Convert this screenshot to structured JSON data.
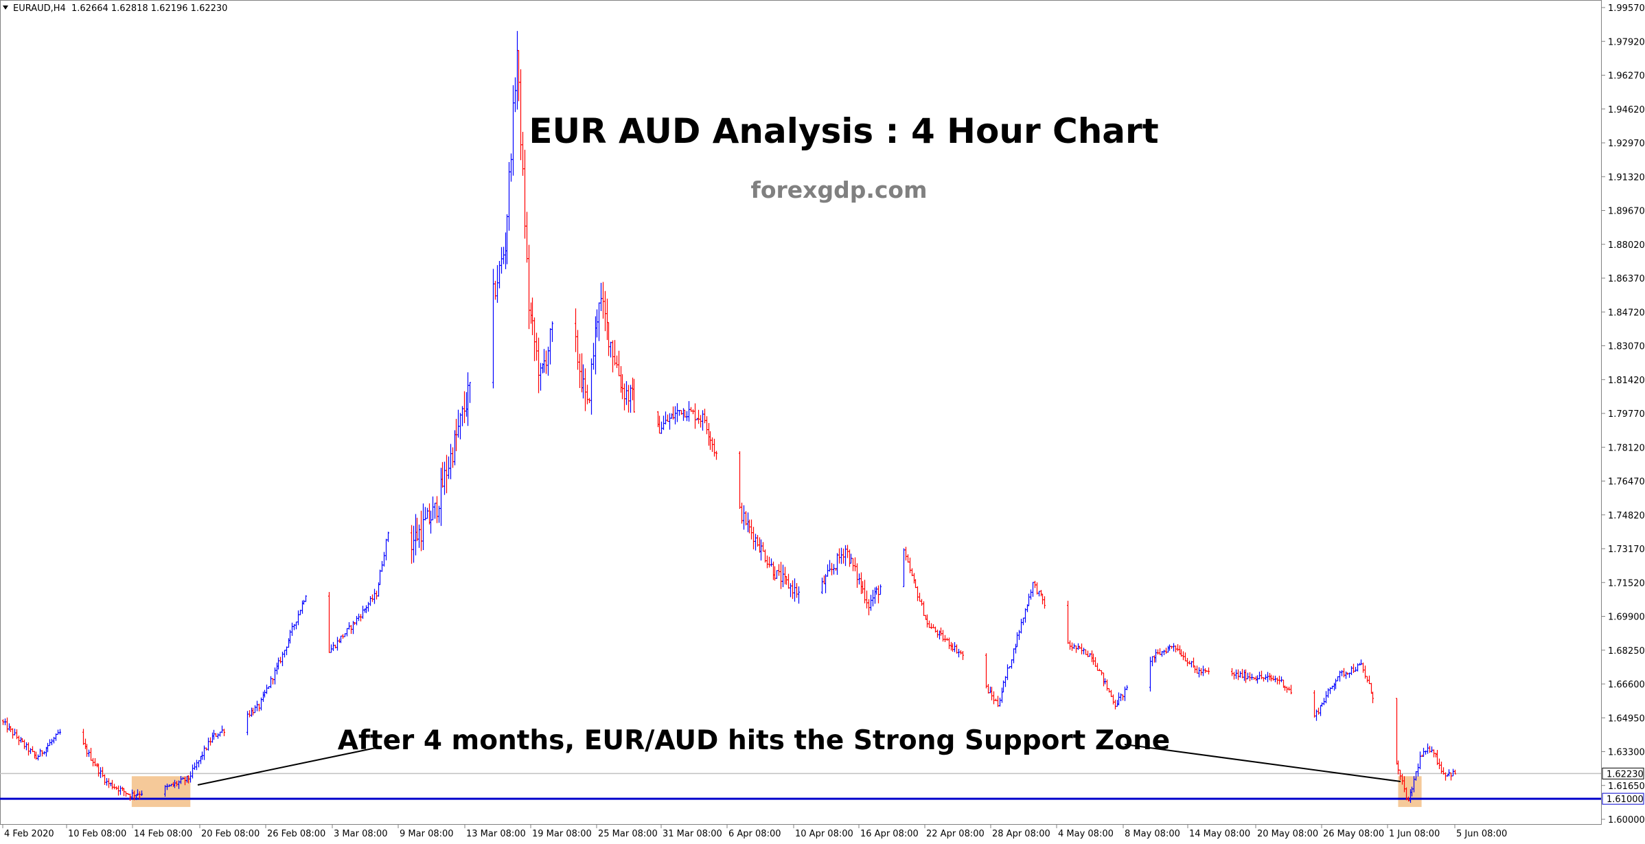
{
  "header": {
    "symbol": "EURAUD,H4",
    "ohlc": "1.62664 1.62818 1.62196 1.62230"
  },
  "title": "EUR AUD Analysis : 4 Hour Chart",
  "watermark": "forexgdp.com",
  "annotation": "After 4 months, EUR/AUD hits the Strong Support Zone",
  "colors": {
    "bull": "#0000ff",
    "bear": "#ff0000",
    "support_line": "#0000cc",
    "current_line": "#c0c0c0",
    "zone": "#f5c999",
    "frame": "#808080"
  },
  "chart_data": {
    "type": "candlestick",
    "symbol": "EURAUD",
    "timeframe": "H4",
    "y_ticks": [
      "1.99570",
      "1.97920",
      "1.96270",
      "1.94620",
      "1.92970",
      "1.91320",
      "1.89670",
      "1.88020",
      "1.86370",
      "1.84720",
      "1.83070",
      "1.81420",
      "1.79770",
      "1.78120",
      "1.76470",
      "1.74820",
      "1.73170",
      "1.71520",
      "1.69900",
      "1.68250",
      "1.66600",
      "1.64950",
      "1.63300",
      "1.61650",
      "1.60000"
    ],
    "ylim": [
      1.6,
      1.9957
    ],
    "x_labels": [
      "4 Feb 2020",
      "10 Feb 08:00",
      "14 Feb 08:00",
      "20 Feb 08:00",
      "26 Feb 08:00",
      "3 Mar 08:00",
      "9 Mar 08:00",
      "13 Mar 08:00",
      "19 Mar 08:00",
      "25 Mar 08:00",
      "31 Mar 08:00",
      "6 Apr 08:00",
      "10 Apr 08:00",
      "16 Apr 08:00",
      "22 Apr 08:00",
      "28 Apr 08:00",
      "4 May 08:00",
      "8 May 08:00",
      "14 May 08:00",
      "20 May 08:00",
      "26 May 08:00",
      "1 Jun 08:00",
      "5 Jun 08:00"
    ],
    "current_price": "1.62230",
    "support_level": "1.61000",
    "support_zones": [
      {
        "date_from": "14 Feb 2020",
        "date_to": "19 Feb 2020",
        "low": 1.606,
        "high": 1.621
      },
      {
        "date_from": "1 Jun 2020",
        "date_to": "3 Jun 2020",
        "low": 1.606,
        "high": 1.621
      }
    ],
    "price_path": [
      {
        "date": "3 Feb 2020",
        "close": 1.648
      },
      {
        "date": "6 Feb 2020",
        "close": 1.63
      },
      {
        "date": "8 Feb 2020",
        "close": 1.642
      },
      {
        "date": "10 Feb 2020",
        "close": 1.636
      },
      {
        "date": "12 Feb 2020",
        "close": 1.618
      },
      {
        "date": "14 Feb 2020",
        "close": 1.612
      },
      {
        "date": "17 Feb 2020",
        "close": 1.615
      },
      {
        "date": "19 Feb 2020",
        "close": 1.62
      },
      {
        "date": "21 Feb 2020",
        "close": 1.64
      },
      {
        "date": "25 Feb 2020",
        "close": 1.655
      },
      {
        "date": "27 Feb 2020",
        "close": 1.68
      },
      {
        "date": "29 Feb 2020",
        "close": 1.71
      },
      {
        "date": "2 Mar 2020",
        "close": 1.682
      },
      {
        "date": "4 Mar 2020",
        "close": 1.695
      },
      {
        "date": "6 Mar 2020",
        "close": 1.71
      },
      {
        "date": "8 Mar 2020",
        "close": 1.77
      },
      {
        "date": "9 Mar 2020",
        "close": 1.735
      },
      {
        "date": "11 Mar 2020",
        "close": 1.75
      },
      {
        "date": "13 Mar 2020",
        "close": 1.79
      },
      {
        "date": "15 Mar 2020",
        "close": 1.83
      },
      {
        "date": "17 Mar 2020",
        "close": 1.88
      },
      {
        "date": "18 Mar 2020",
        "close": 1.975
      },
      {
        "date": "19 Mar 2020",
        "close": 1.85
      },
      {
        "date": "20 Mar 2020",
        "close": 1.815
      },
      {
        "date": "22 Mar 2020",
        "close": 1.86
      },
      {
        "date": "24 Mar 2020",
        "close": 1.8
      },
      {
        "date": "25 Mar 2020",
        "close": 1.855
      },
      {
        "date": "27 Mar 2020",
        "close": 1.81
      },
      {
        "date": "30 Mar 2020",
        "close": 1.79
      },
      {
        "date": "1 Apr 2020",
        "close": 1.8
      },
      {
        "date": "3 Apr 2020",
        "close": 1.795
      },
      {
        "date": "5 Apr 2020",
        "close": 1.76
      },
      {
        "date": "7 Apr 2020",
        "close": 1.74
      },
      {
        "date": "9 Apr 2020",
        "close": 1.72
      },
      {
        "date": "12 Apr 2020",
        "close": 1.705
      },
      {
        "date": "15 Apr 2020",
        "close": 1.732
      },
      {
        "date": "17 Apr 2020",
        "close": 1.705
      },
      {
        "date": "20 Apr 2020",
        "close": 1.73
      },
      {
        "date": "22 Apr 2020",
        "close": 1.695
      },
      {
        "date": "25 Apr 2020",
        "close": 1.68
      },
      {
        "date": "28 Apr 2020",
        "close": 1.656
      },
      {
        "date": "1 May 2020",
        "close": 1.715
      },
      {
        "date": "4 May 2020",
        "close": 1.685
      },
      {
        "date": "6 May 2020",
        "close": 1.68
      },
      {
        "date": "8 May 2020",
        "close": 1.656
      },
      {
        "date": "11 May 2020",
        "close": 1.678
      },
      {
        "date": "13 May 2020",
        "close": 1.685
      },
      {
        "date": "15 May 2020",
        "close": 1.672
      },
      {
        "date": "19 May 2020",
        "close": 1.67
      },
      {
        "date": "22 May 2020",
        "close": 1.668
      },
      {
        "date": "25 May 2020",
        "close": 1.65
      },
      {
        "date": "27 May 2020",
        "close": 1.67
      },
      {
        "date": "29 May 2020",
        "close": 1.675
      },
      {
        "date": "31 May 2020",
        "close": 1.645
      },
      {
        "date": "2 Jun 2020",
        "close": 1.608
      },
      {
        "date": "3 Jun 2020",
        "close": 1.63
      },
      {
        "date": "4 Jun 2020",
        "close": 1.635
      },
      {
        "date": "5 Jun 2020",
        "close": 1.6223
      }
    ]
  }
}
